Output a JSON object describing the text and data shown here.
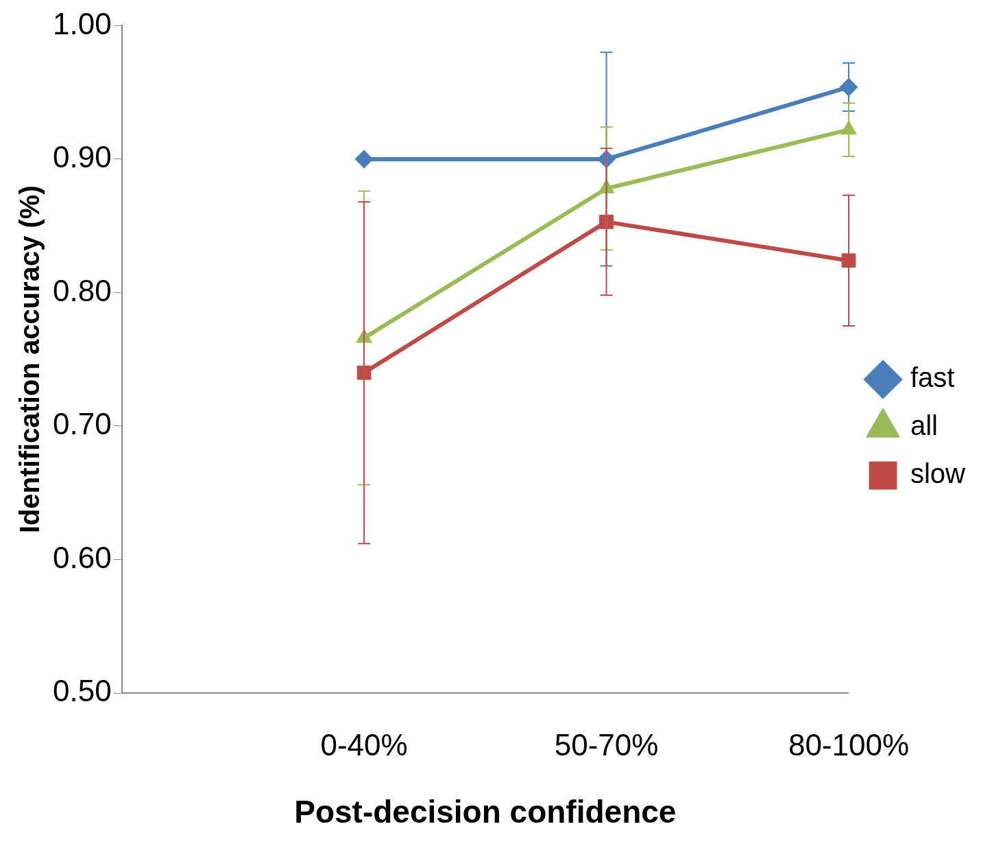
{
  "chart_data": {
    "type": "line",
    "xlabel": "Post-decision confidence",
    "ylabel": "Identification accuracy (%)",
    "categories": [
      null,
      "0-40%",
      "50-70%",
      "80-100%"
    ],
    "series": [
      {
        "name": "fast",
        "color": "#4a7ebb",
        "marker": "diamond",
        "values": [
          null,
          0.9,
          0.9,
          0.954
        ],
        "errors": [
          null,
          null,
          0.08,
          0.018
        ]
      },
      {
        "name": "all",
        "color": "#9bbb59",
        "marker": "triangle",
        "values": [
          null,
          0.766,
          0.878,
          0.922
        ],
        "errors": [
          null,
          0.11,
          0.046,
          0.02
        ]
      },
      {
        "name": "slow",
        "color": "#be4b48",
        "marker": "square",
        "values": [
          null,
          0.74,
          0.853,
          0.824
        ],
        "errors": [
          null,
          0.128,
          0.055,
          0.049
        ]
      }
    ],
    "ylim": [
      0.5,
      1.0
    ],
    "yticks": [
      {
        "value": 0.5,
        "label": "0.50"
      },
      {
        "value": 0.6,
        "label": "0.60"
      },
      {
        "value": 0.7,
        "label": "0.70"
      },
      {
        "value": 0.8,
        "label": "0.80"
      },
      {
        "value": 0.9,
        "label": "0.90"
      },
      {
        "value": 1.0,
        "label": "1.00"
      }
    ],
    "grid": false,
    "legend": "right"
  }
}
